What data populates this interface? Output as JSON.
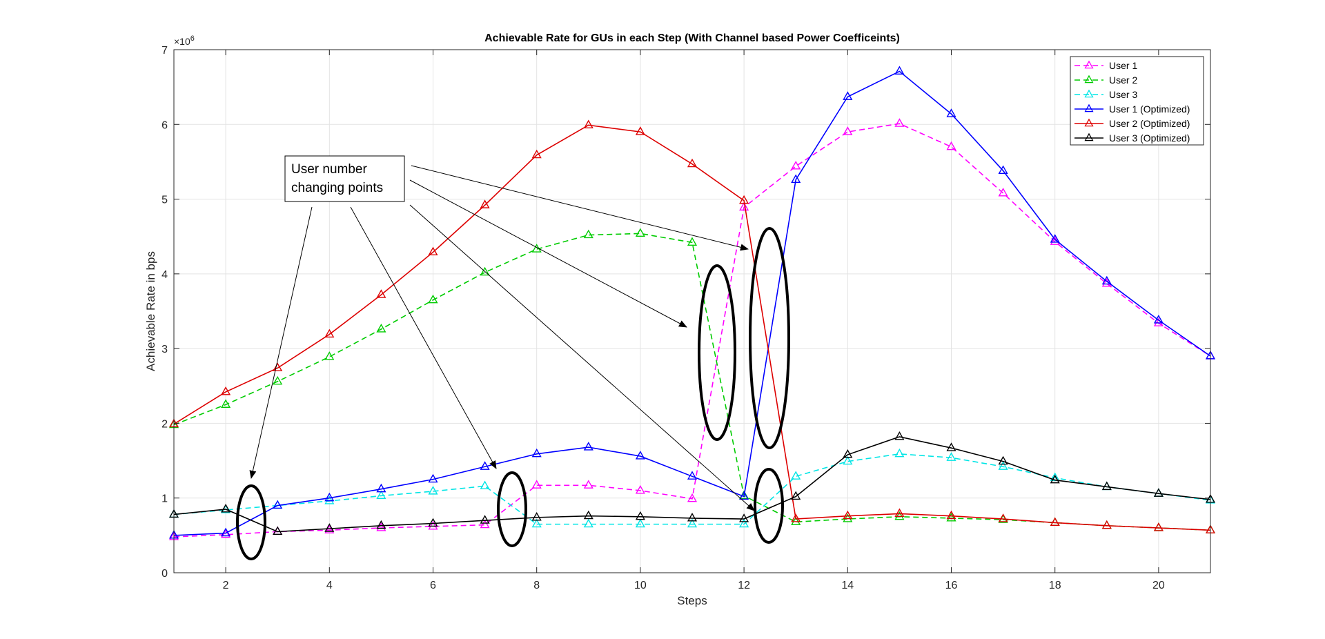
{
  "chart_data": {
    "type": "line",
    "title": "Achievable Rate for GUs in each Step (With Channel based Power Coefficeints)",
    "xlabel": "Steps",
    "ylabel": "Achievable Rate in bps",
    "y_exponent_base": "×10",
    "y_exponent_power": "6",
    "xlim": [
      1,
      21
    ],
    "ylim": [
      0,
      7
    ],
    "xticks": [
      2,
      4,
      6,
      8,
      10,
      12,
      14,
      16,
      18,
      20
    ],
    "yticks": [
      0,
      1,
      2,
      3,
      4,
      5,
      6,
      7
    ],
    "grid": true,
    "legend_position": "top-right",
    "x": [
      1,
      2,
      3,
      4,
      5,
      6,
      7,
      8,
      9,
      10,
      11,
      12,
      13,
      14,
      15,
      16,
      17,
      18,
      19,
      20,
      21
    ],
    "series": [
      {
        "name": "User 1",
        "color": "#ff00ff",
        "dash": "dashed",
        "values": [
          0.48,
          0.51,
          0.55,
          0.57,
          0.6,
          0.62,
          0.64,
          1.17,
          1.17,
          1.1,
          0.99,
          4.89,
          5.44,
          5.9,
          6.01,
          5.7,
          5.08,
          4.43,
          3.87,
          3.34,
          2.9
        ]
      },
      {
        "name": "User 2",
        "color": "#00cc00",
        "dash": "dashed",
        "values": [
          1.98,
          2.25,
          2.56,
          2.89,
          3.26,
          3.65,
          4.02,
          4.33,
          4.52,
          4.54,
          4.42,
          1.03,
          0.68,
          0.72,
          0.75,
          0.73,
          0.71,
          0.67,
          0.63,
          0.6,
          0.57
        ]
      },
      {
        "name": "User 3",
        "color": "#00e5e5",
        "dash": "dashed",
        "values": [
          0.78,
          0.84,
          0.9,
          0.96,
          1.03,
          1.09,
          1.16,
          0.65,
          0.65,
          0.65,
          0.65,
          0.65,
          1.29,
          1.49,
          1.59,
          1.54,
          1.42,
          1.27,
          1.15,
          1.06,
          0.97
        ]
      },
      {
        "name": "User 1 (Optimized)",
        "color": "#0000ff",
        "dash": "solid",
        "values": [
          0.5,
          0.53,
          0.9,
          1.0,
          1.12,
          1.25,
          1.42,
          1.59,
          1.68,
          1.56,
          1.29,
          1.02,
          5.26,
          6.37,
          6.71,
          6.14,
          5.38,
          4.46,
          3.9,
          3.38,
          2.9
        ]
      },
      {
        "name": "User 2 (Optimized)",
        "color": "#dd0000",
        "dash": "solid",
        "values": [
          1.99,
          2.42,
          2.74,
          3.19,
          3.72,
          4.29,
          4.92,
          5.59,
          5.99,
          5.9,
          5.47,
          4.98,
          0.72,
          0.76,
          0.79,
          0.76,
          0.72,
          0.67,
          0.63,
          0.6,
          0.57
        ]
      },
      {
        "name": "User 3 (Optimized)",
        "color": "#000000",
        "dash": "solid",
        "values": [
          0.78,
          0.85,
          0.55,
          0.59,
          0.63,
          0.66,
          0.7,
          0.74,
          0.76,
          0.75,
          0.73,
          0.72,
          1.02,
          1.58,
          1.82,
          1.67,
          1.49,
          1.24,
          1.15,
          1.06,
          0.98
        ]
      }
    ],
    "annotation": {
      "line1": "User number",
      "line2": "changing points"
    }
  }
}
